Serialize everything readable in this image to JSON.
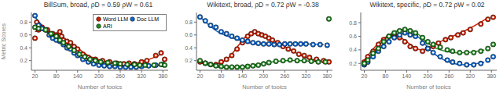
{
  "chart_data": [
    {
      "type": "scatter",
      "title": "BillSum, broad, ρD = 0.59 ρW = 0.61",
      "x_label": "Number of topics",
      "y_label": "Metric Scores",
      "xlim": [
        10,
        395
      ],
      "xticks": [
        20,
        80,
        140,
        200,
        260,
        320,
        380
      ],
      "ylim": [
        0.05,
        0.95
      ],
      "yticks": [
        0.2,
        0.4,
        0.6,
        0.8
      ],
      "grid": false,
      "legend": "upper right",
      "series": [
        {
          "name": "Word LLM",
          "type": "scatter",
          "marker": "o",
          "color": "#cc2200",
          "x": [
            20,
            25,
            30,
            40,
            55,
            65,
            70,
            80,
            90,
            95,
            100,
            110,
            120,
            130,
            140,
            155,
            170,
            190,
            210,
            230,
            250,
            270,
            285,
            300,
            320,
            335,
            360,
            375,
            385
          ],
          "values": [
            0.55,
            0.8,
            0.68,
            0.72,
            0.68,
            0.6,
            0.62,
            0.6,
            0.65,
            0.58,
            0.52,
            0.5,
            0.48,
            0.42,
            0.38,
            0.3,
            0.25,
            0.22,
            0.2,
            0.18,
            0.16,
            0.15,
            0.16,
            0.15,
            0.18,
            0.2,
            0.28,
            0.32,
            0.22
          ]
        },
        {
          "name": "Doc LLM",
          "type": "scatter",
          "marker": "o",
          "color": "#1166cc",
          "x": [
            20,
            30,
            40,
            50,
            60,
            70,
            80,
            90,
            100,
            110,
            120,
            130,
            140,
            155,
            170,
            185,
            200,
            215,
            230,
            245,
            260,
            275,
            290,
            305,
            320,
            340,
            360,
            380
          ],
          "values": [
            0.9,
            0.75,
            0.7,
            0.68,
            0.6,
            0.55,
            0.52,
            0.5,
            0.45,
            0.4,
            0.38,
            0.32,
            0.28,
            0.22,
            0.18,
            0.15,
            0.13,
            0.12,
            0.11,
            0.11,
            0.1,
            0.1,
            0.1,
            0.1,
            0.11,
            0.12,
            0.13,
            0.14
          ]
        },
        {
          "name": "ARI",
          "type": "scatter",
          "marker": "o",
          "color": "#228822",
          "x": [
            20,
            30,
            50,
            65,
            80,
            90,
            100,
            115,
            130,
            145,
            160,
            175,
            190,
            205,
            225,
            245,
            260,
            280,
            300,
            315,
            330,
            355,
            375,
            385
          ],
          "values": [
            0.72,
            0.7,
            0.68,
            0.62,
            0.58,
            0.52,
            0.48,
            0.42,
            0.36,
            0.3,
            0.26,
            0.22,
            0.2,
            0.18,
            0.17,
            0.16,
            0.15,
            0.14,
            0.14,
            0.13,
            0.13,
            0.13,
            0.14,
            0.13
          ]
        },
        {
          "name": "Word LLM",
          "type": "line",
          "line_style": "solid",
          "color": "#cc2200",
          "x": [
            20,
            50,
            80,
            110,
            140,
            170,
            210,
            250,
            290,
            330,
            370
          ],
          "values": [
            0.65,
            0.68,
            0.6,
            0.52,
            0.4,
            0.28,
            0.2,
            0.16,
            0.15,
            0.2,
            0.28
          ]
        },
        {
          "name": "Doc LLM",
          "type": "line",
          "line_style": "solid",
          "color": "#1166cc",
          "x": [
            20,
            50,
            80,
            110,
            140,
            170,
            210,
            250,
            290,
            330,
            370
          ],
          "values": [
            0.88,
            0.68,
            0.52,
            0.42,
            0.28,
            0.18,
            0.13,
            0.11,
            0.1,
            0.11,
            0.13
          ]
        },
        {
          "name": "ARI",
          "type": "line",
          "line_style": "solid",
          "color": "#228822",
          "x": [
            20,
            50,
            80,
            110,
            140,
            170,
            210,
            250,
            290,
            330,
            370
          ],
          "values": [
            0.72,
            0.67,
            0.57,
            0.46,
            0.35,
            0.25,
            0.18,
            0.15,
            0.14,
            0.13,
            0.13
          ]
        }
      ]
    },
    {
      "type": "scatter",
      "title": "Wikitext, broad, ρD = 0.72 ρW = -0.38",
      "x_label": "Number of topics",
      "xlim": [
        10,
        395
      ],
      "xticks": [
        20,
        80,
        140,
        200,
        260,
        320,
        380
      ],
      "ylim": [
        0.05,
        0.95
      ],
      "yticks": [
        0.2,
        0.4,
        0.6,
        0.8
      ],
      "grid": false,
      "series": [
        {
          "name": "Word LLM",
          "type": "scatter",
          "marker": "o",
          "color": "#cc2200",
          "x": [
            20,
            35,
            50,
            65,
            80,
            95,
            110,
            125,
            140,
            155,
            165,
            175,
            185,
            195,
            205,
            215,
            225,
            240,
            255,
            270,
            285,
            300,
            315,
            330,
            350,
            370,
            385
          ],
          "values": [
            0.18,
            0.16,
            0.14,
            0.14,
            0.18,
            0.22,
            0.28,
            0.38,
            0.48,
            0.58,
            0.62,
            0.65,
            0.62,
            0.6,
            0.58,
            0.55,
            0.52,
            0.48,
            0.42,
            0.38,
            0.35,
            0.3,
            0.28,
            0.25,
            0.22,
            0.2,
            0.18
          ]
        },
        {
          "name": "Doc LLM",
          "type": "scatter",
          "marker": "o",
          "color": "#1166cc",
          "x": [
            20,
            35,
            50,
            65,
            80,
            95,
            110,
            125,
            140,
            155,
            170,
            185,
            200,
            215,
            230,
            245,
            260,
            275,
            290,
            305,
            320,
            340,
            360,
            380
          ],
          "values": [
            0.88,
            0.82,
            0.75,
            0.72,
            0.65,
            0.62,
            0.58,
            0.55,
            0.52,
            0.5,
            0.48,
            0.47,
            0.46,
            0.46,
            0.45,
            0.45,
            0.46,
            0.46,
            0.46,
            0.46,
            0.46,
            0.45,
            0.45,
            0.44
          ]
        },
        {
          "name": "ARI",
          "type": "scatter",
          "marker": "o",
          "color": "#228822",
          "x": [
            20,
            35,
            50,
            65,
            80,
            95,
            110,
            125,
            140,
            155,
            170,
            185,
            200,
            215,
            235,
            255,
            275,
            295,
            315,
            335,
            355,
            375,
            385
          ],
          "values": [
            0.2,
            0.16,
            0.14,
            0.12,
            0.11,
            0.1,
            0.1,
            0.1,
            0.1,
            0.11,
            0.12,
            0.13,
            0.15,
            0.17,
            0.19,
            0.2,
            0.21,
            0.2,
            0.2,
            0.19,
            0.18,
            0.18,
            0.85
          ]
        },
        {
          "name": "Word LLM",
          "type": "line",
          "line_style": "solid",
          "color": "#cc2200",
          "x": [
            20,
            70,
            110,
            150,
            185,
            220,
            260,
            310,
            360
          ],
          "values": [
            0.16,
            0.15,
            0.3,
            0.58,
            0.64,
            0.54,
            0.42,
            0.27,
            0.19
          ]
        },
        {
          "name": "Doc LLM",
          "type": "line",
          "line_style": "solid",
          "color": "#1166cc",
          "x": [
            20,
            70,
            120,
            170,
            220,
            270,
            320,
            370
          ],
          "values": [
            0.88,
            0.65,
            0.54,
            0.47,
            0.46,
            0.46,
            0.46,
            0.45
          ]
        },
        {
          "name": "ARI",
          "type": "line",
          "line_style": "solid",
          "color": "#228822",
          "x": [
            20,
            70,
            120,
            165,
            210,
            260,
            310,
            360
          ],
          "values": [
            0.18,
            0.1,
            0.1,
            0.12,
            0.17,
            0.2,
            0.2,
            0.18
          ]
        }
      ]
    },
    {
      "type": "scatter",
      "title": "Wikitext, specific, ρD = 0.72 ρW = 0.02",
      "x_label": "Number of topics",
      "xlim": [
        10,
        395
      ],
      "xticks": [
        20,
        80,
        140,
        200,
        260,
        320,
        380
      ],
      "ylim": [
        0.1,
        0.95
      ],
      "yticks": [
        0.2,
        0.4,
        0.6,
        0.8
      ],
      "grid": false,
      "series": [
        {
          "name": "Word LLM",
          "type": "scatter",
          "marker": "o",
          "color": "#cc2200",
          "x": [
            20,
            30,
            45,
            60,
            75,
            90,
            105,
            120,
            135,
            150,
            165,
            185,
            200,
            215,
            230,
            250,
            265,
            285,
            300,
            320,
            350,
            370,
            385
          ],
          "values": [
            0.22,
            0.3,
            0.38,
            0.48,
            0.55,
            0.6,
            0.62,
            0.58,
            0.52,
            0.45,
            0.42,
            0.38,
            0.42,
            0.45,
            0.5,
            0.55,
            0.58,
            0.62,
            0.65,
            0.7,
            0.78,
            0.85,
            0.88
          ]
        },
        {
          "name": "Doc LLM",
          "type": "scatter",
          "marker": "o",
          "color": "#1166cc",
          "x": [
            20,
            30,
            45,
            60,
            75,
            90,
            105,
            120,
            135,
            150,
            165,
            185,
            200,
            215,
            235,
            255,
            270,
            290,
            310,
            330,
            350,
            370,
            385
          ],
          "values": [
            0.18,
            0.22,
            0.3,
            0.38,
            0.45,
            0.52,
            0.58,
            0.62,
            0.65,
            0.62,
            0.6,
            0.5,
            0.42,
            0.36,
            0.3,
            0.25,
            0.22,
            0.2,
            0.18,
            0.18,
            0.2,
            0.25,
            0.3
          ]
        },
        {
          "name": "ARI",
          "type": "scatter",
          "marker": "o",
          "color": "#228822",
          "x": [
            20,
            30,
            45,
            60,
            75,
            90,
            105,
            120,
            135,
            150,
            165,
            185,
            200,
            215,
            235,
            255,
            270,
            290,
            310,
            330,
            350,
            370,
            385
          ],
          "values": [
            0.2,
            0.25,
            0.35,
            0.42,
            0.52,
            0.6,
            0.65,
            0.68,
            0.7,
            0.68,
            0.65,
            0.58,
            0.52,
            0.48,
            0.44,
            0.4,
            0.38,
            0.36,
            0.36,
            0.36,
            0.38,
            0.42,
            0.48
          ]
        },
        {
          "name": "Word LLM",
          "type": "line",
          "line_style": "solid",
          "color": "#cc2200",
          "x": [
            20,
            60,
            100,
            140,
            180,
            220,
            270,
            320,
            370
          ],
          "values": [
            0.25,
            0.5,
            0.62,
            0.52,
            0.4,
            0.48,
            0.6,
            0.72,
            0.87
          ]
        },
        {
          "name": "Doc LLM",
          "type": "line",
          "line_style": "solid",
          "color": "#1166cc",
          "x": [
            20,
            60,
            100,
            140,
            175,
            210,
            260,
            310,
            360
          ],
          "values": [
            0.19,
            0.4,
            0.6,
            0.64,
            0.58,
            0.38,
            0.22,
            0.18,
            0.22
          ]
        },
        {
          "name": "ARI",
          "type": "line",
          "line_style": "solid",
          "color": "#228822",
          "x": [
            20,
            60,
            100,
            140,
            175,
            210,
            260,
            310,
            360
          ],
          "values": [
            0.22,
            0.46,
            0.65,
            0.7,
            0.62,
            0.46,
            0.37,
            0.36,
            0.4
          ]
        }
      ]
    }
  ]
}
